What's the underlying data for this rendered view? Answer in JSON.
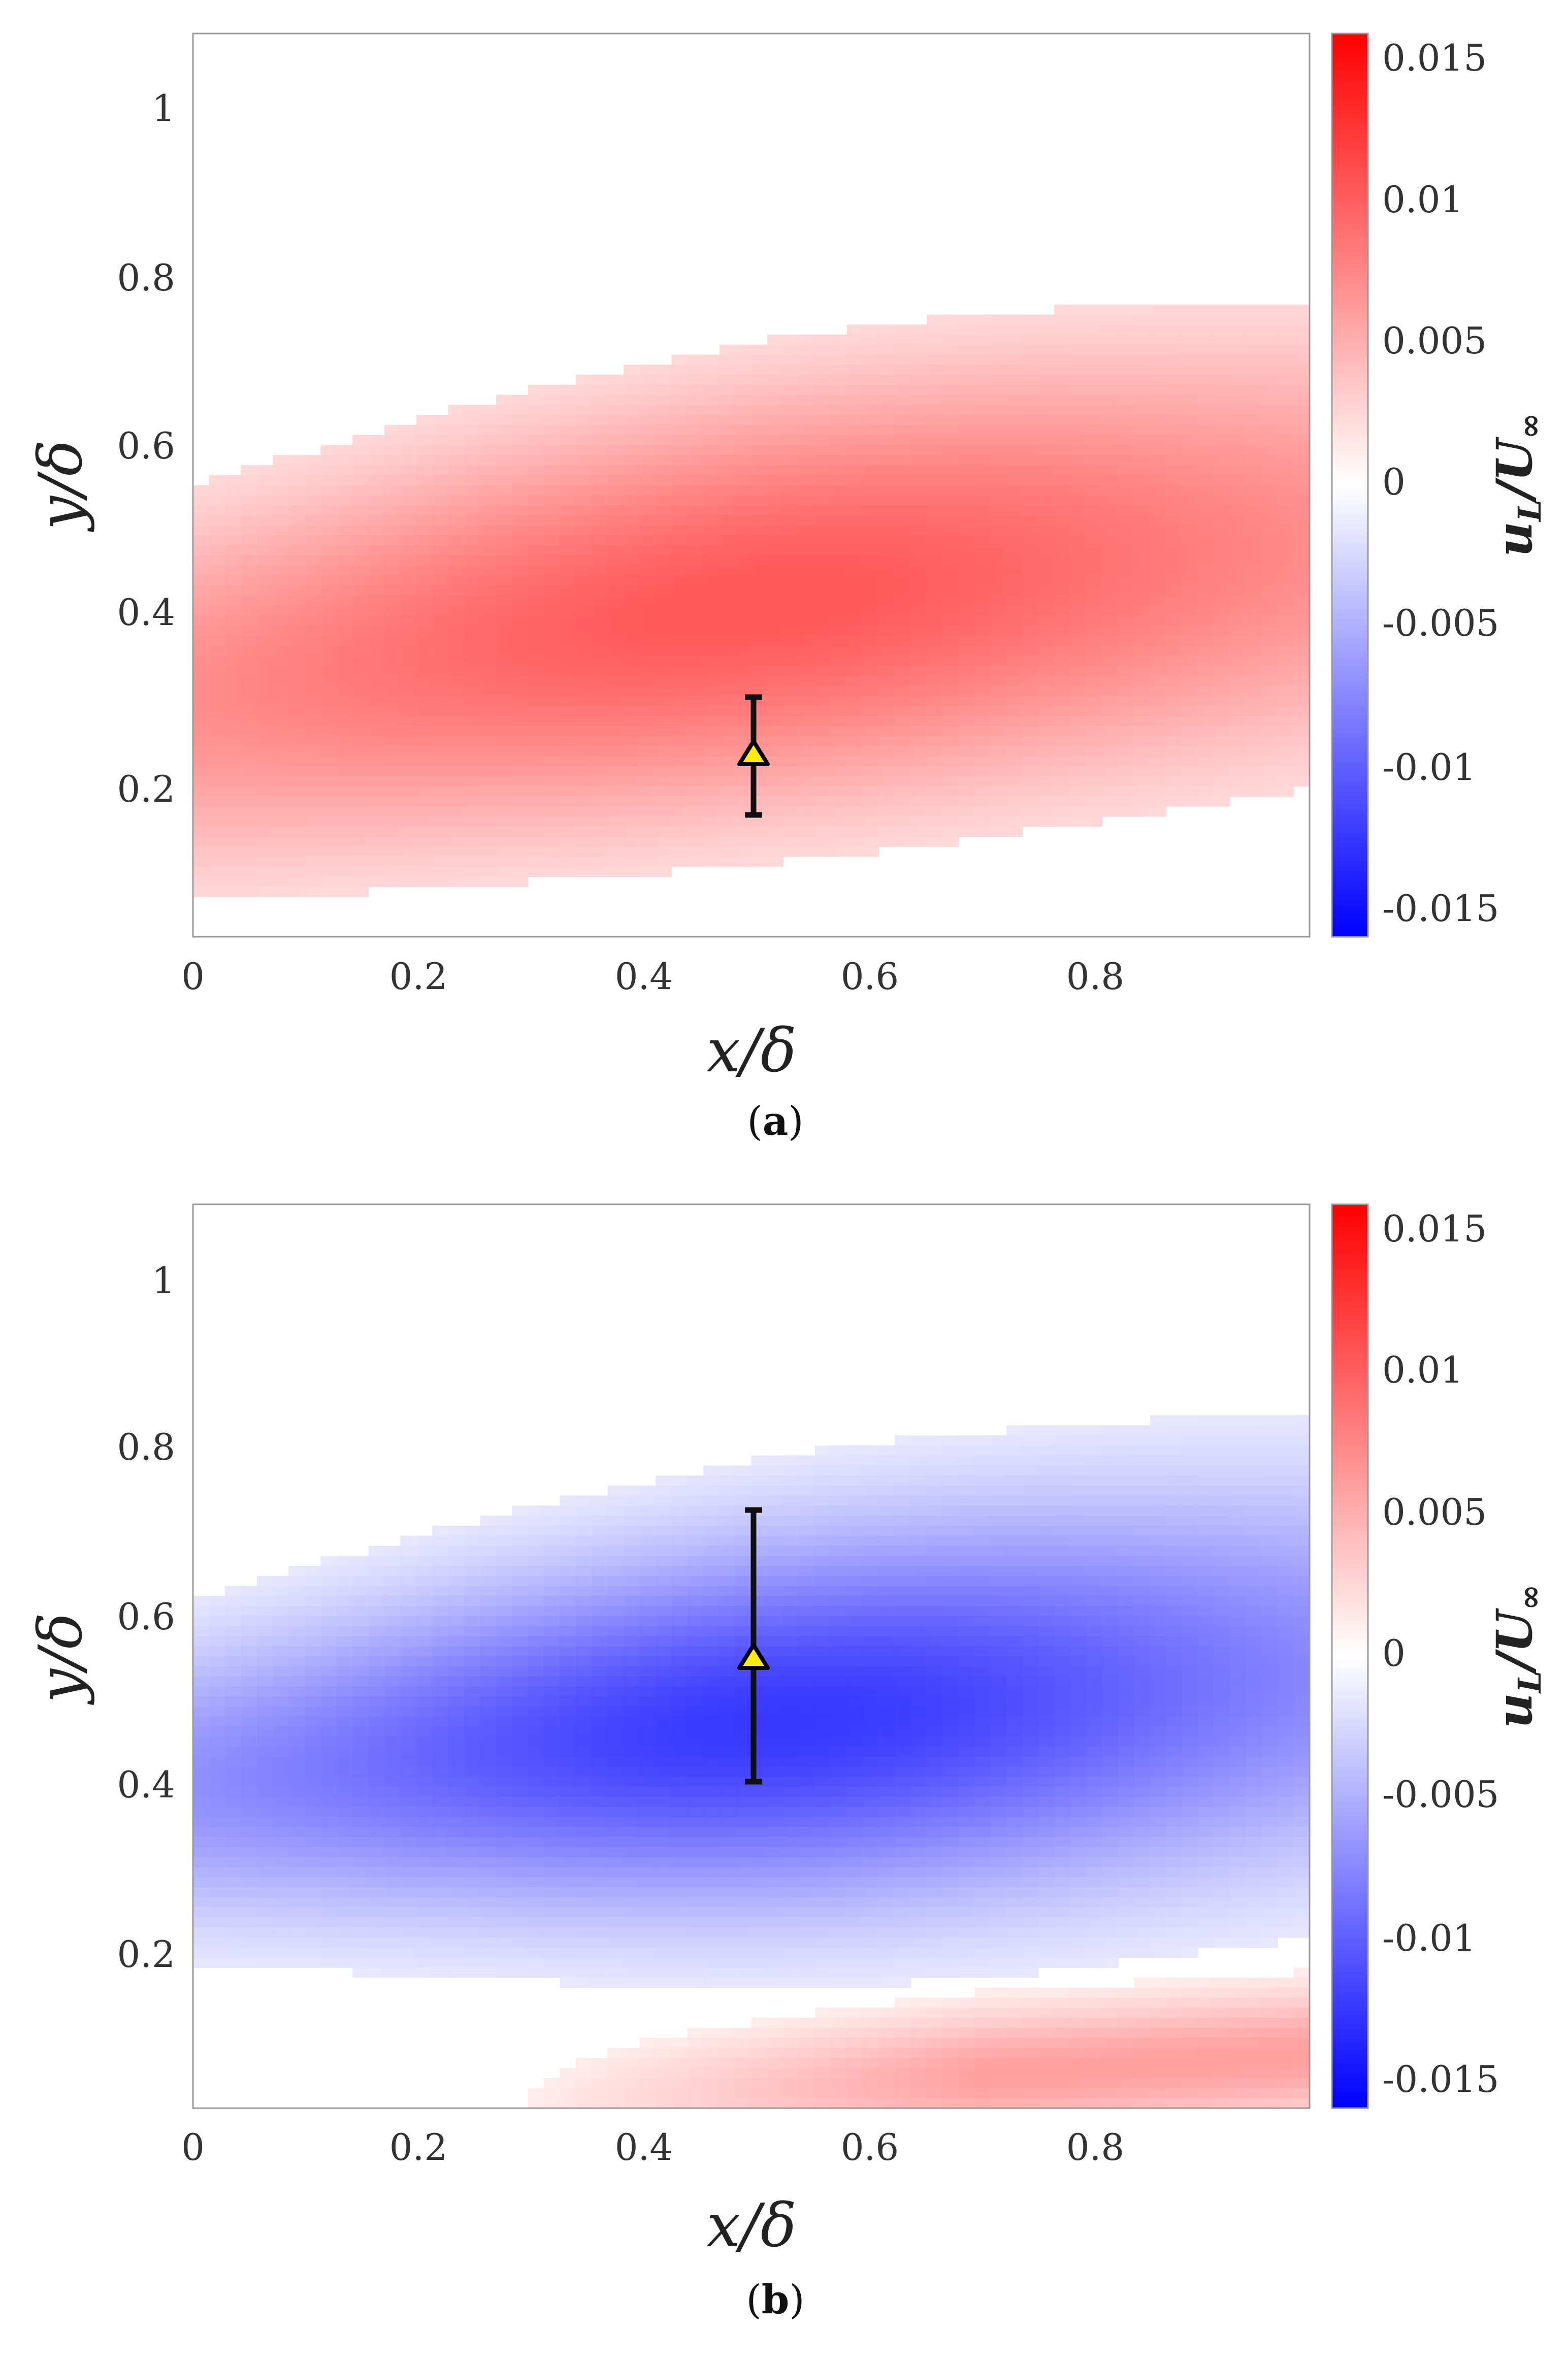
{
  "chart_data": [
    {
      "type": "heatmap",
      "panel_id": "a",
      "caption_letter": "a",
      "xlabel": "x/δ",
      "ylabel": "y/δ",
      "xlim": [
        0,
        0.99
      ],
      "ylim": [
        0.005,
        1.1
      ],
      "x_ticks": [
        0,
        0.2,
        0.4,
        0.6,
        0.8
      ],
      "x_tick_labels": [
        "0",
        "0.2",
        "0.4",
        "0.6",
        "0.8"
      ],
      "y_ticks": [
        0.2,
        0.4,
        0.6,
        0.8,
        1.0
      ],
      "y_tick_labels": [
        "0.2",
        "0.4",
        "0.6",
        "0.8",
        "1"
      ],
      "colorbar": {
        "label": "u_L/U_∞",
        "label_main": "u",
        "label_sub": "L",
        "label_div": "/U",
        "label_inf": "∞",
        "range": [
          -0.016,
          0.016
        ],
        "ticks": [
          -0.015,
          -0.01,
          -0.005,
          0,
          0.005,
          0.01,
          0.015
        ],
        "tick_labels": [
          "-0.015",
          "-0.01",
          "-0.005",
          "0",
          "0.005",
          "0.01",
          "0.015"
        ],
        "colormap": "blue-white-red",
        "neg_color": "#0000ff",
        "zero_color": "#ffffff",
        "pos_color": "#ff0000"
      },
      "field": {
        "sign": 1,
        "peak_value": 0.0105,
        "core_ridge": {
          "x": [
            0,
            0.25,
            0.5,
            0.75,
            1.0
          ],
          "y": [
            0.3,
            0.36,
            0.41,
            0.45,
            0.48
          ]
        },
        "core_thickness": {
          "x": [
            0,
            0.5,
            1.0
          ],
          "y": [
            0.24,
            0.26,
            0.28
          ]
        },
        "peak_x": 0.5,
        "peak_x_width": 0.5,
        "base_fraction": 0.5,
        "threshold": 0.0024
      },
      "secondary_field": null,
      "marker": {
        "x": 0.497,
        "y": 0.23,
        "y_err_low": 0.16,
        "y_err_high": 0.3,
        "shape": "triangle",
        "fill": "#ffee00",
        "stroke": "#000000"
      }
    },
    {
      "type": "heatmap",
      "panel_id": "b",
      "caption_letter": "b",
      "xlabel": "x/δ",
      "ylabel": "y/δ",
      "xlim": [
        0,
        0.99
      ],
      "ylim": [
        0.005,
        1.1
      ],
      "x_ticks": [
        0,
        0.2,
        0.4,
        0.6,
        0.8
      ],
      "x_tick_labels": [
        "0",
        "0.2",
        "0.4",
        "0.6",
        "0.8"
      ],
      "y_ticks": [
        0.2,
        0.4,
        0.6,
        0.8,
        1.0
      ],
      "y_tick_labels": [
        "0.2",
        "0.4",
        "0.6",
        "0.8",
        "1"
      ],
      "colorbar": {
        "label": "u_L/U_∞",
        "label_main": "u",
        "label_sub": "L",
        "label_div": "/U",
        "label_inf": "∞",
        "range": [
          -0.016,
          0.016
        ],
        "ticks": [
          -0.015,
          -0.01,
          -0.005,
          0,
          0.005,
          0.01,
          0.015
        ],
        "tick_labels": [
          "-0.015",
          "-0.01",
          "-0.005",
          "0",
          "0.005",
          "0.01",
          "0.015"
        ],
        "colormap": "blue-white-red",
        "neg_color": "#0000ff",
        "zero_color": "#ffffff",
        "pos_color": "#ff0000"
      },
      "field": {
        "sign": -1,
        "peak_value": 0.0125,
        "core_ridge": {
          "x": [
            0,
            0.25,
            0.5,
            0.75,
            1.0
          ],
          "y": [
            0.4,
            0.44,
            0.47,
            0.5,
            0.53
          ]
        },
        "core_thickness": {
          "x": [
            0,
            0.5,
            1.0
          ],
          "y": [
            0.18,
            0.22,
            0.25
          ]
        },
        "peak_x": 0.52,
        "peak_x_width": 0.45,
        "base_fraction": 0.4,
        "threshold": 0.0015
      },
      "secondary_field": {
        "sign": 1,
        "peak_value": 0.006,
        "ridge": {
          "x": [
            0.2,
            1.0
          ],
          "y": [
            0.0,
            0.07
          ]
        },
        "thickness": 0.08,
        "x_start": 0.2,
        "x_ramp": 0.5,
        "threshold": 0.0012
      },
      "marker": {
        "x": 0.497,
        "y": 0.58,
        "y_err_low": 0.415,
        "y_err_high": 0.74,
        "shape": "triangle",
        "fill": "#ffee00",
        "stroke": "#000000"
      }
    }
  ]
}
